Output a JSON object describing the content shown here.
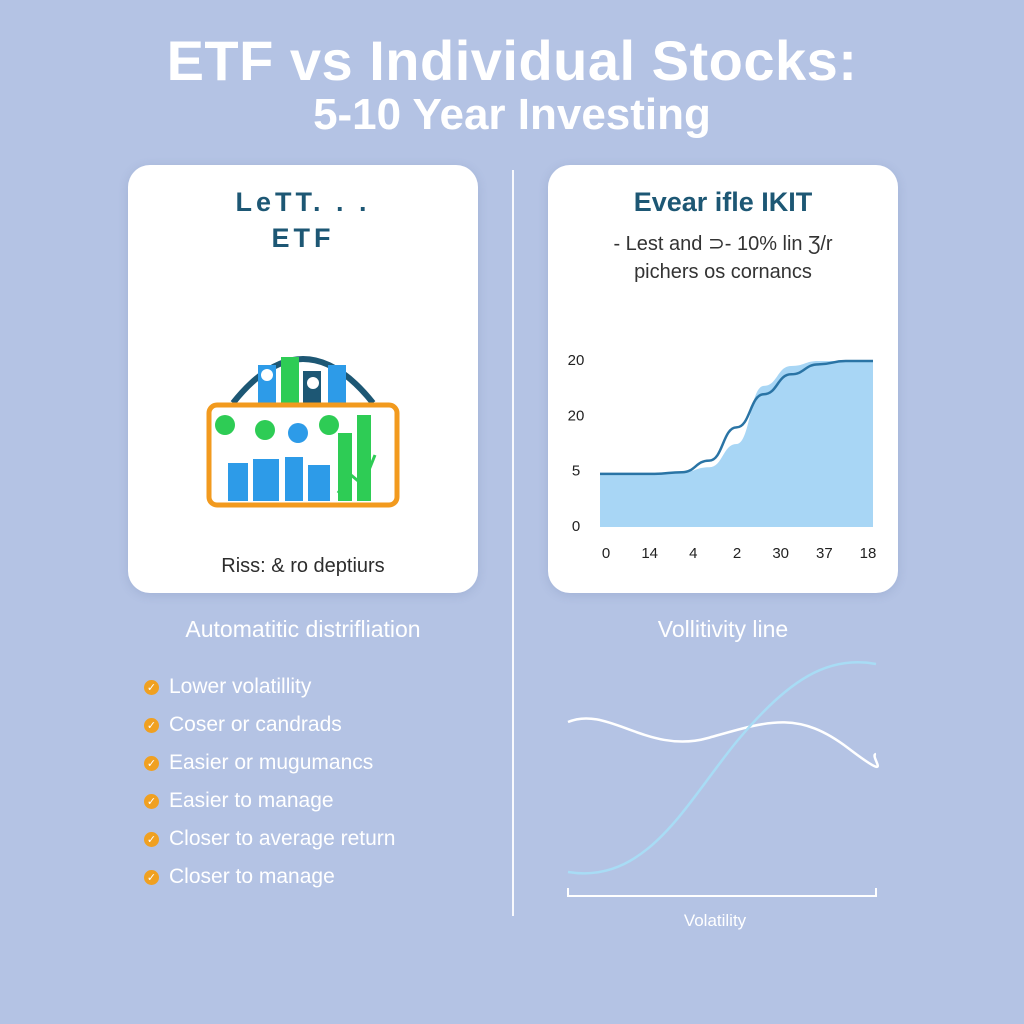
{
  "title": {
    "line1": "ETF vs Individual Stocks:",
    "line2": "5-10 Year Investing"
  },
  "etf_card": {
    "heading_line1": "LeTT. . .",
    "heading_line2": "ETF",
    "caption": "Riss: & ro deptiurs"
  },
  "stock_card": {
    "heading": "Evear ifle IKIT",
    "subtitle_line1": "- Lest and ⊃- 10% lin Ʒ/r",
    "subtitle_line2": "pichers os cornancs"
  },
  "chart_data": [
    {
      "type": "area",
      "y_tick_labels": [
        "20",
        "20",
        "5",
        "0"
      ],
      "x_tick_labels": [
        "0",
        "14",
        "4",
        "2",
        "30",
        "37",
        "18"
      ],
      "series": [
        {
          "kind": "area",
          "values": [
            0.32,
            0.32,
            0.32,
            0.33,
            0.36,
            0.5,
            0.85,
            0.97,
            1.0,
            1.0,
            1.0
          ]
        },
        {
          "kind": "line",
          "values": [
            0.32,
            0.32,
            0.32,
            0.33,
            0.4,
            0.6,
            0.8,
            0.92,
            0.98,
            1.0,
            1.0
          ]
        }
      ],
      "colors": {
        "area": "#a8d6f5",
        "line": "#2a74a5"
      }
    },
    {
      "type": "line",
      "xlabel": "Volatility",
      "series": [
        {
          "kind": "wavy",
          "color": "#ffffff"
        },
        {
          "kind": "s-curve",
          "color": "#a8dcf5"
        }
      ]
    }
  ],
  "left_section": {
    "heading": "Automatitic distrifliation",
    "items": [
      "Lower volatillity",
      "Coser or candrads",
      "Easier or mugumancs",
      "Easier to manage",
      "Closer to average return",
      "Closer to manage"
    ]
  },
  "right_section": {
    "heading": "Vollitivity line"
  },
  "colors": {
    "background": "#b4c3e4",
    "heading_text": "#1d5774",
    "check": "#f0a020",
    "basket_orange": "#f29a1e",
    "basket_blue": "#2d9be8",
    "basket_green": "#2ecc55",
    "basket_handle": "#1d5774"
  }
}
